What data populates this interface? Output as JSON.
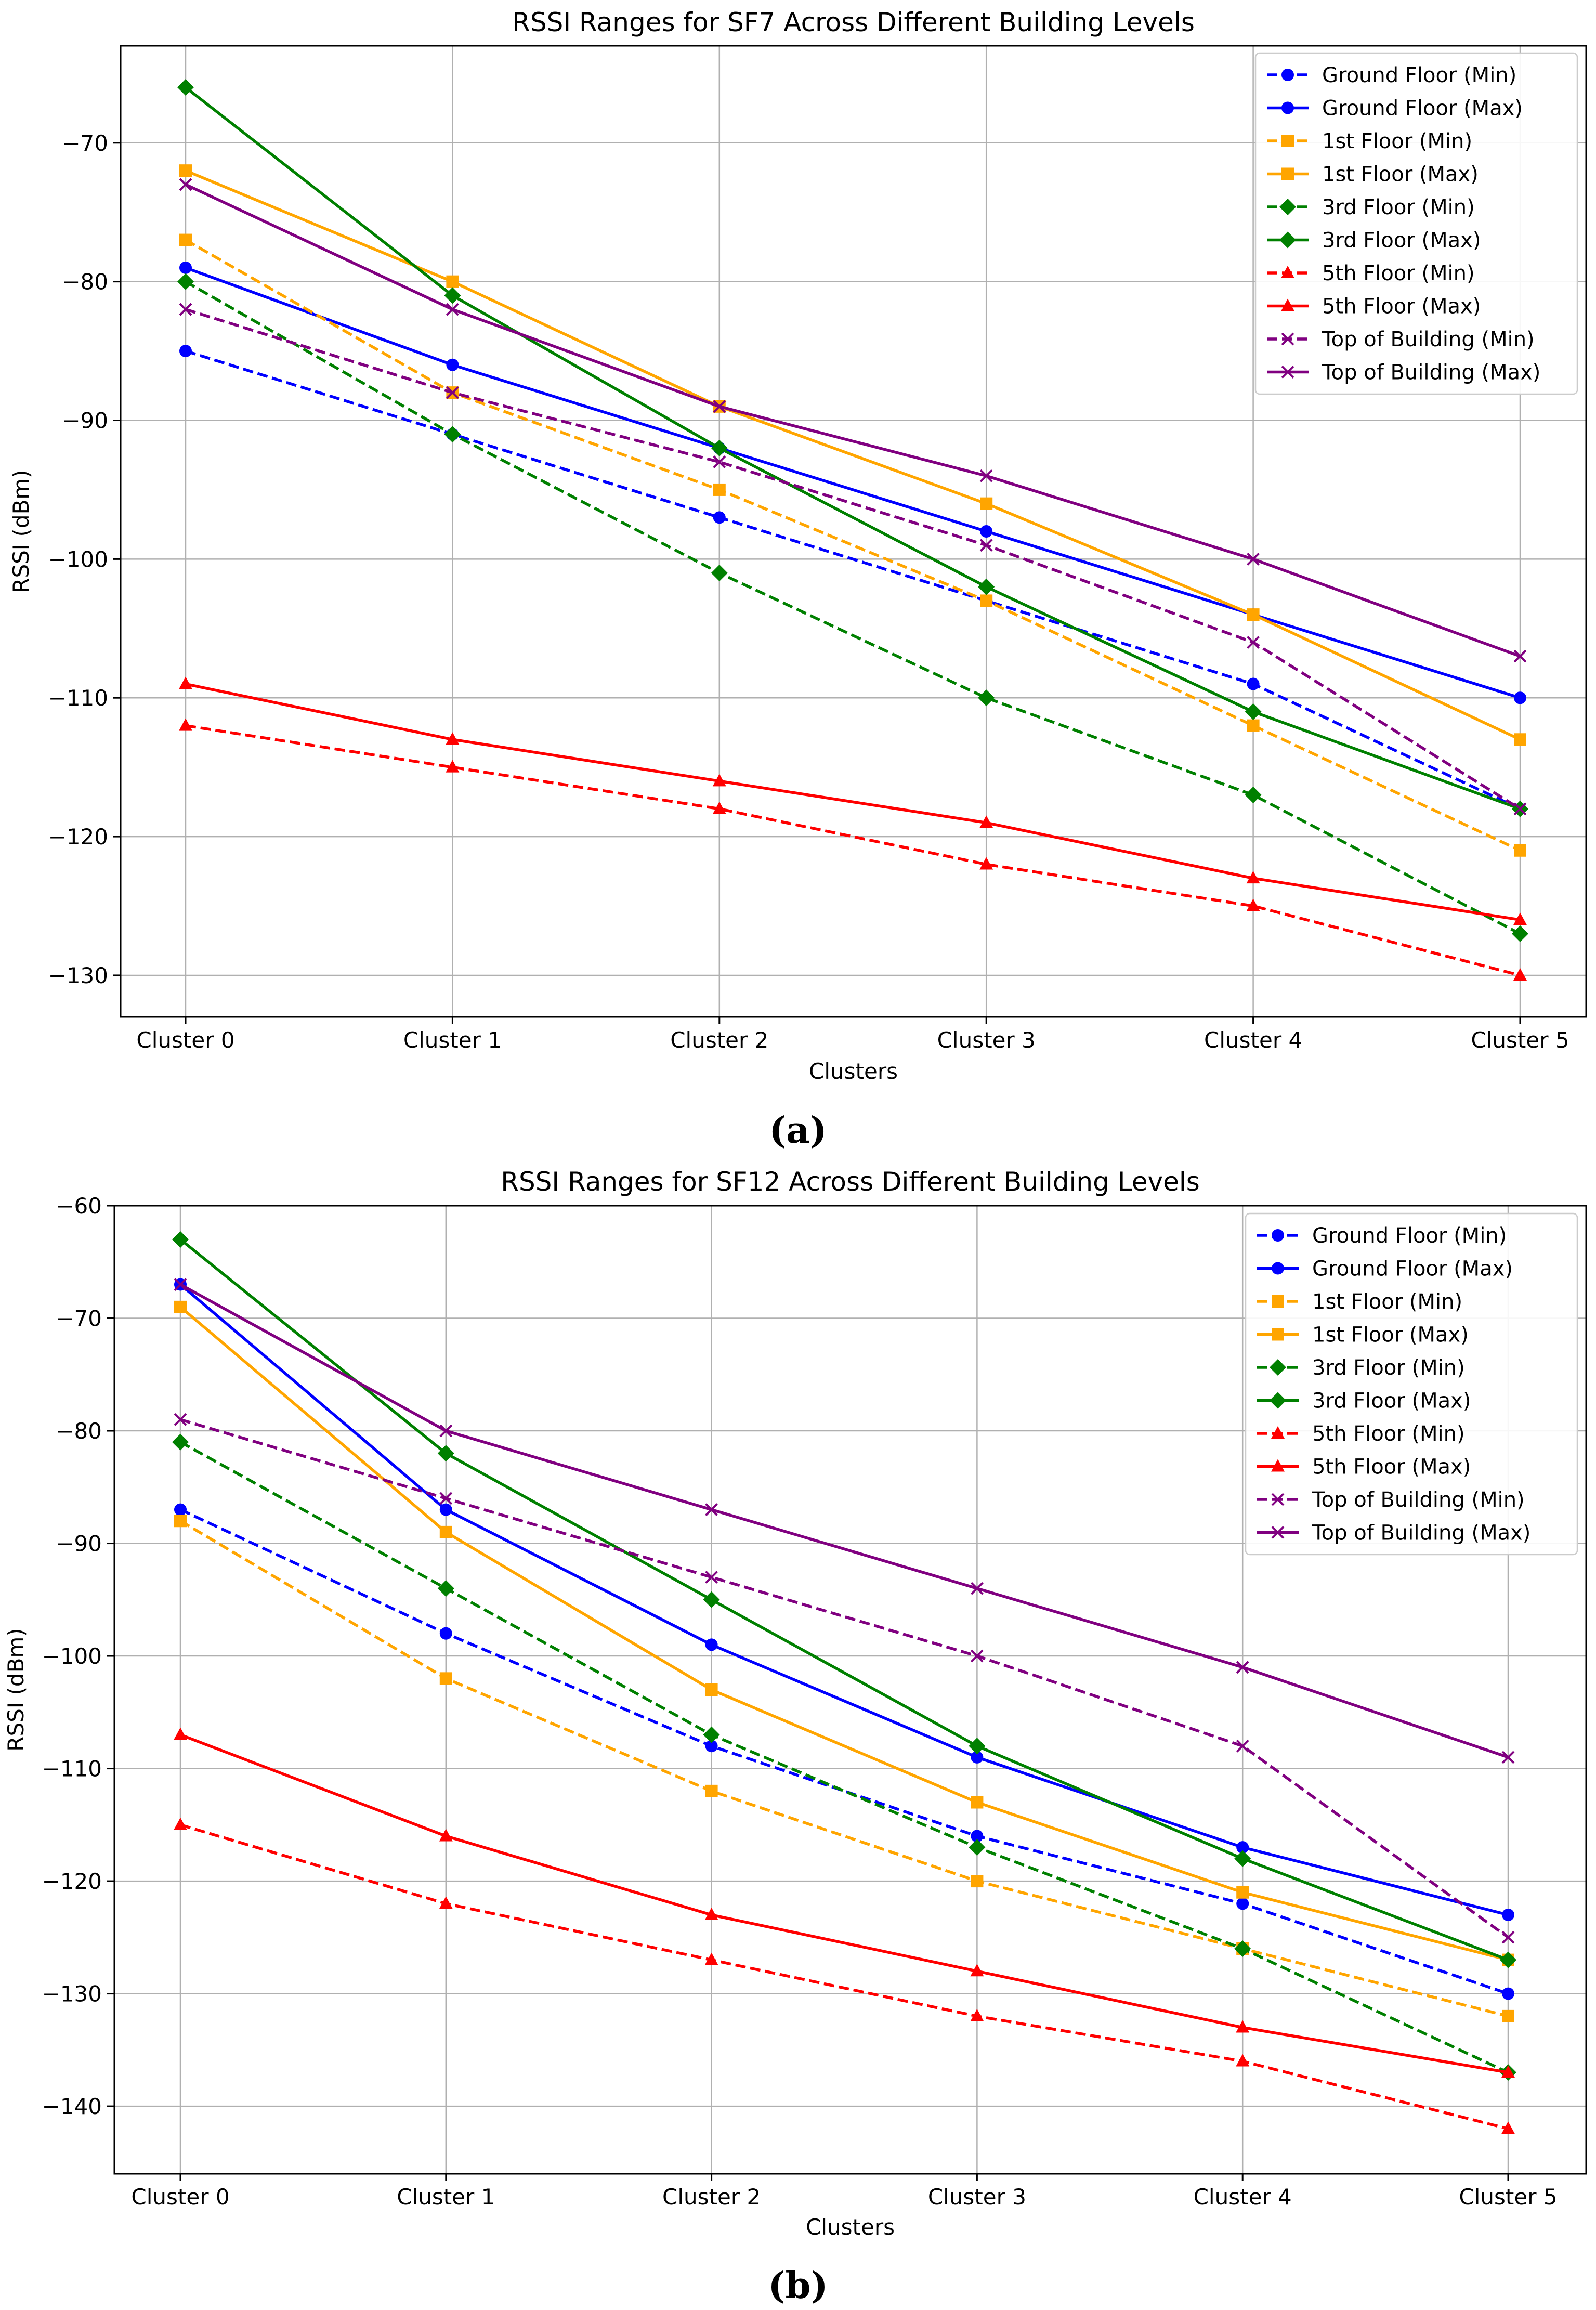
{
  "figure": {
    "panel_labels": [
      "(a)",
      "(b)"
    ]
  },
  "chart_data": [
    {
      "type": "line",
      "title": "RSSI Ranges for SF7 Across Different Building Levels",
      "xlabel": "Clusters",
      "ylabel": "RSSI (dBm)",
      "categories": [
        "Cluster 0",
        "Cluster 1",
        "Cluster 2",
        "Cluster 3",
        "Cluster 4",
        "Cluster 5"
      ],
      "ylim": [
        -133,
        -63
      ],
      "yticks": [
        -130,
        -120,
        -110,
        -100,
        -90,
        -80,
        -70
      ],
      "ytick_labels": [
        "−130",
        "−120",
        "−110",
        "−100",
        "−90",
        "−80",
        "−70"
      ],
      "grid": true,
      "legend_position": "top-right",
      "series": [
        {
          "name": "Ground Floor (Min)",
          "color": "#0000ff",
          "dash": "dashed",
          "marker": "circle",
          "values": [
            -85,
            -91,
            -97,
            -103,
            -109,
            -118
          ]
        },
        {
          "name": "Ground Floor (Max)",
          "color": "#0000ff",
          "dash": "solid",
          "marker": "circle",
          "values": [
            -79,
            -86,
            -92,
            -98,
            -104,
            -110
          ]
        },
        {
          "name": "1st Floor (Min)",
          "color": "#ffa500",
          "dash": "dashed",
          "marker": "square",
          "values": [
            -77,
            -88,
            -95,
            -103,
            -112,
            -121
          ]
        },
        {
          "name": "1st Floor (Max)",
          "color": "#ffa500",
          "dash": "solid",
          "marker": "square",
          "values": [
            -72,
            -80,
            -89,
            -96,
            -104,
            -113
          ]
        },
        {
          "name": "3rd Floor (Min)",
          "color": "#008000",
          "dash": "dashed",
          "marker": "diamond",
          "values": [
            -80,
            -91,
            -101,
            -110,
            -117,
            -127
          ]
        },
        {
          "name": "3rd Floor (Max)",
          "color": "#008000",
          "dash": "solid",
          "marker": "diamond",
          "values": [
            -66,
            -81,
            -92,
            -102,
            -111,
            -118
          ]
        },
        {
          "name": "5th Floor (Min)",
          "color": "#ff0000",
          "dash": "dashed",
          "marker": "triangle",
          "values": [
            -112,
            -115,
            -118,
            -122,
            -125,
            -130
          ]
        },
        {
          "name": "5th Floor (Max)",
          "color": "#ff0000",
          "dash": "solid",
          "marker": "triangle",
          "values": [
            -109,
            -113,
            -116,
            -119,
            -123,
            -126
          ]
        },
        {
          "name": "Top of Building (Min)",
          "color": "#800080",
          "dash": "dashed",
          "marker": "x",
          "values": [
            -82,
            -88,
            -93,
            -99,
            -106,
            -118
          ]
        },
        {
          "name": "Top of Building (Max)",
          "color": "#800080",
          "dash": "solid",
          "marker": "x",
          "values": [
            -73,
            -82,
            -89,
            -94,
            -100,
            -107
          ]
        }
      ]
    },
    {
      "type": "line",
      "title": "RSSI Ranges for SF12 Across Different Building Levels",
      "xlabel": "Clusters",
      "ylabel": "RSSI (dBm)",
      "categories": [
        "Cluster 0",
        "Cluster 1",
        "Cluster 2",
        "Cluster 3",
        "Cluster 4",
        "Cluster 5"
      ],
      "ylim": [
        -146,
        -60
      ],
      "yticks": [
        -140,
        -130,
        -120,
        -110,
        -100,
        -90,
        -80,
        -70,
        -60
      ],
      "ytick_labels": [
        "−140",
        "−130",
        "−120",
        "−110",
        "−100",
        "−90",
        "−80",
        "−70",
        "−60"
      ],
      "grid": true,
      "legend_position": "top-right",
      "series": [
        {
          "name": "Ground Floor (Min)",
          "color": "#0000ff",
          "dash": "dashed",
          "marker": "circle",
          "values": [
            -87,
            -98,
            -108,
            -116,
            -122,
            -130
          ]
        },
        {
          "name": "Ground Floor (Max)",
          "color": "#0000ff",
          "dash": "solid",
          "marker": "circle",
          "values": [
            -67,
            -87,
            -99,
            -109,
            -117,
            -123
          ]
        },
        {
          "name": "1st Floor (Min)",
          "color": "#ffa500",
          "dash": "dashed",
          "marker": "square",
          "values": [
            -88,
            -102,
            -112,
            -120,
            -126,
            -132
          ]
        },
        {
          "name": "1st Floor (Max)",
          "color": "#ffa500",
          "dash": "solid",
          "marker": "square",
          "values": [
            -69,
            -89,
            -103,
            -113,
            -121,
            -127
          ]
        },
        {
          "name": "3rd Floor (Min)",
          "color": "#008000",
          "dash": "dashed",
          "marker": "diamond",
          "values": [
            -81,
            -94,
            -107,
            -117,
            -126,
            -137
          ]
        },
        {
          "name": "3rd Floor (Max)",
          "color": "#008000",
          "dash": "solid",
          "marker": "diamond",
          "values": [
            -63,
            -82,
            -95,
            -108,
            -118,
            -127
          ]
        },
        {
          "name": "5th Floor (Min)",
          "color": "#ff0000",
          "dash": "dashed",
          "marker": "triangle",
          "values": [
            -115,
            -122,
            -127,
            -132,
            -136,
            -142
          ]
        },
        {
          "name": "5th Floor (Max)",
          "color": "#ff0000",
          "dash": "solid",
          "marker": "triangle",
          "values": [
            -107,
            -116,
            -123,
            -128,
            -133,
            -137
          ]
        },
        {
          "name": "Top of Building (Min)",
          "color": "#800080",
          "dash": "dashed",
          "marker": "x",
          "values": [
            -79,
            -86,
            -93,
            -100,
            -108,
            -125
          ]
        },
        {
          "name": "Top of Building (Max)",
          "color": "#800080",
          "dash": "solid",
          "marker": "x",
          "values": [
            -67,
            -80,
            -87,
            -94,
            -101,
            -109
          ]
        }
      ]
    }
  ]
}
